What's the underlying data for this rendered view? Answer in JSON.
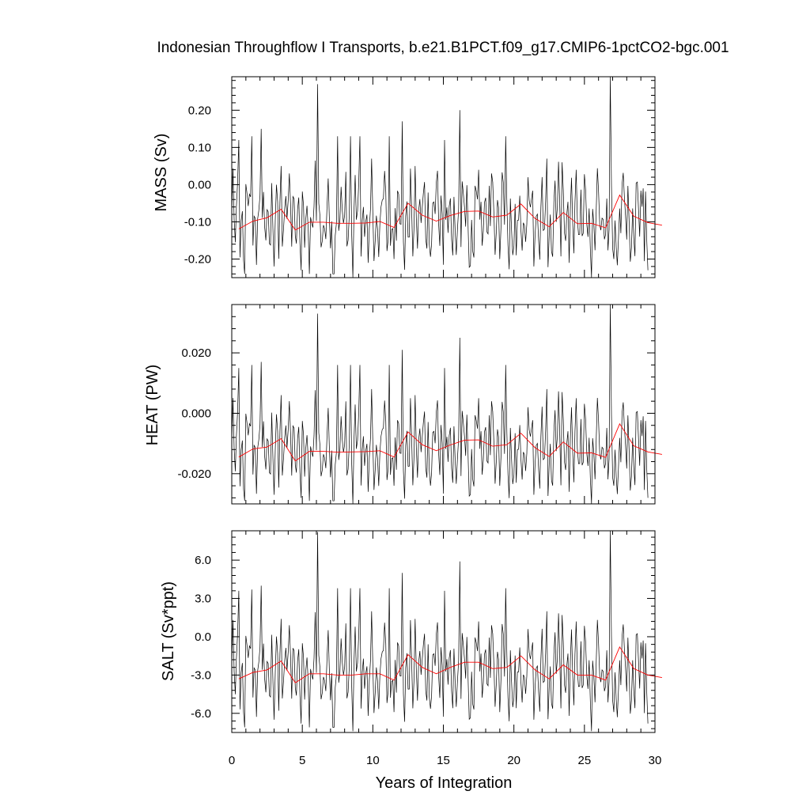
{
  "chart_data": {
    "type": "line",
    "title": "Indonesian Throughflow I Transports, b.e21.B1PCT.f09_g17.CMIP6-1pctCO2-bgc.001",
    "xlabel": "Years of Integration",
    "xlim": [
      0,
      30
    ],
    "x_ticks": [
      "0",
      "5",
      "10",
      "15",
      "20",
      "25",
      "30"
    ],
    "colors": {
      "monthly": "#000000",
      "annual_mean": "#ff0000"
    },
    "panels": [
      {
        "ylabel": "MASS (Sv)",
        "ylim": [
          -0.25,
          0.29
        ],
        "y_ticks": [
          0.2,
          0.1,
          0.0,
          -0.1,
          -0.2
        ],
        "y_tick_labels": [
          "0.20",
          "0.10",
          "0.00",
          "-0.10",
          "-0.20"
        ],
        "annual_mean": [
          -0.119,
          -0.098,
          -0.089,
          -0.066,
          -0.122,
          -0.101,
          -0.101,
          -0.104,
          -0.104,
          -0.103,
          -0.099,
          -0.115,
          -0.05,
          -0.082,
          -0.098,
          -0.083,
          -0.072,
          -0.071,
          -0.087,
          -0.082,
          -0.052,
          -0.091,
          -0.113,
          -0.075,
          -0.105,
          -0.104,
          -0.116,
          -0.028,
          -0.085,
          -0.102,
          -0.109
        ],
        "monthly_peaks": [
          [
            0.5,
            0.12
          ],
          [
            1.4,
            0.13
          ],
          [
            2.1,
            0.15
          ],
          [
            3.5,
            0.05
          ],
          [
            4.1,
            0.03
          ],
          [
            6.1,
            0.27
          ],
          [
            7.5,
            0.13
          ],
          [
            8.4,
            0.13
          ],
          [
            9.1,
            0.13
          ],
          [
            9.9,
            0.07
          ],
          [
            11.2,
            0.13
          ],
          [
            12.1,
            0.17
          ],
          [
            13.0,
            0.05
          ],
          [
            15.1,
            0.12
          ],
          [
            16.2,
            0.2
          ],
          [
            17.5,
            0.04
          ],
          [
            18.4,
            0.03
          ],
          [
            19.4,
            0.13
          ],
          [
            21.0,
            0.02
          ],
          [
            22.3,
            0.07
          ],
          [
            23.4,
            0.06
          ],
          [
            24.4,
            0.04
          ],
          [
            26.8,
            0.29
          ],
          [
            27.7,
            0.0
          ],
          [
            29.2,
            -0.01
          ]
        ],
        "monthly_troughs": [
          [
            0.9,
            -0.24
          ],
          [
            3.0,
            -0.22
          ],
          [
            4.9,
            -0.23
          ],
          [
            5.5,
            -0.24
          ],
          [
            7.2,
            -0.24
          ],
          [
            8.6,
            -0.25
          ],
          [
            9.7,
            -0.21
          ],
          [
            11.5,
            -0.2
          ],
          [
            14.0,
            -0.16
          ],
          [
            15.7,
            -0.19
          ],
          [
            17.1,
            -0.18
          ],
          [
            19.0,
            -0.2
          ],
          [
            20.2,
            -0.19
          ],
          [
            21.4,
            -0.22
          ],
          [
            23.9,
            -0.21
          ],
          [
            25.5,
            -0.25
          ],
          [
            27.1,
            -0.2
          ],
          [
            28.3,
            -0.17
          ],
          [
            29.5,
            -0.23
          ]
        ]
      },
      {
        "ylabel": "HEAT (PW)",
        "ylim": [
          -0.03,
          0.036
        ],
        "y_ticks": [
          0.02,
          0.0,
          -0.02
        ],
        "y_tick_labels": [
          "0.020",
          "0.000",
          "-0.020"
        ],
        "annual_mean": [
          -0.0145,
          -0.0118,
          -0.0112,
          -0.0084,
          -0.0158,
          -0.0126,
          -0.0126,
          -0.0129,
          -0.0128,
          -0.0127,
          -0.0124,
          -0.0145,
          -0.0062,
          -0.0104,
          -0.0124,
          -0.0105,
          -0.0089,
          -0.0088,
          -0.0109,
          -0.0104,
          -0.0066,
          -0.0114,
          -0.0143,
          -0.0095,
          -0.0132,
          -0.0131,
          -0.0146,
          -0.0035,
          -0.0108,
          -0.0128,
          -0.0136
        ],
        "monthly_peaks": [
          [
            0.5,
            0.015
          ],
          [
            1.4,
            0.016
          ],
          [
            2.1,
            0.017
          ],
          [
            3.5,
            0.006
          ],
          [
            4.1,
            0.004
          ],
          [
            6.1,
            0.033
          ],
          [
            7.5,
            0.016
          ],
          [
            8.4,
            0.016
          ],
          [
            9.1,
            0.016
          ],
          [
            9.9,
            0.008
          ],
          [
            11.2,
            0.016
          ],
          [
            12.1,
            0.021
          ],
          [
            13.0,
            0.006
          ],
          [
            15.1,
            0.015
          ],
          [
            16.2,
            0.025
          ],
          [
            17.5,
            0.005
          ],
          [
            18.4,
            0.004
          ],
          [
            19.4,
            0.016
          ],
          [
            21.0,
            0.002
          ],
          [
            22.3,
            0.008
          ],
          [
            23.4,
            0.007
          ],
          [
            24.4,
            0.005
          ],
          [
            26.8,
            0.036
          ],
          [
            27.7,
            0.0
          ],
          [
            29.2,
            -0.001
          ]
        ],
        "monthly_troughs": [
          [
            0.9,
            -0.029
          ],
          [
            3.0,
            -0.027
          ],
          [
            4.9,
            -0.028
          ],
          [
            5.5,
            -0.029
          ],
          [
            7.2,
            -0.029
          ],
          [
            8.6,
            -0.03
          ],
          [
            9.7,
            -0.026
          ],
          [
            11.5,
            -0.024
          ],
          [
            14.0,
            -0.019
          ],
          [
            15.7,
            -0.023
          ],
          [
            17.1,
            -0.022
          ],
          [
            19.0,
            -0.024
          ],
          [
            20.2,
            -0.023
          ],
          [
            21.4,
            -0.027
          ],
          [
            23.9,
            -0.026
          ],
          [
            25.5,
            -0.03
          ],
          [
            27.1,
            -0.024
          ],
          [
            28.3,
            -0.021
          ],
          [
            29.5,
            -0.028
          ]
        ]
      },
      {
        "ylabel": "SALT (Sv*ppt)",
        "ylim": [
          -7.5,
          8.3
        ],
        "y_ticks": [
          6.0,
          3.0,
          0.0,
          -3.0,
          -6.0
        ],
        "y_tick_labels": [
          "6.0",
          "3.0",
          "0.0",
          "-3.0",
          "-6.0"
        ],
        "annual_mean": [
          -3.3,
          -2.8,
          -2.6,
          -1.9,
          -3.6,
          -2.9,
          -2.9,
          -3.0,
          -3.0,
          -2.9,
          -2.9,
          -3.4,
          -1.4,
          -2.4,
          -2.9,
          -2.4,
          -2.0,
          -2.0,
          -2.5,
          -2.4,
          -1.5,
          -2.6,
          -3.3,
          -2.2,
          -3.0,
          -3.0,
          -3.4,
          -0.8,
          -2.5,
          -3.0,
          -3.2
        ],
        "monthly_peaks": [
          [
            0.5,
            3.6
          ],
          [
            1.4,
            3.7
          ],
          [
            2.1,
            4.0
          ],
          [
            3.5,
            1.4
          ],
          [
            4.1,
            0.9
          ],
          [
            6.1,
            8.2
          ],
          [
            7.5,
            3.8
          ],
          [
            8.4,
            3.8
          ],
          [
            9.1,
            3.8
          ],
          [
            9.9,
            2.0
          ],
          [
            11.2,
            3.8
          ],
          [
            12.1,
            5.0
          ],
          [
            13.0,
            1.4
          ],
          [
            15.1,
            3.6
          ],
          [
            16.2,
            5.9
          ],
          [
            17.5,
            1.2
          ],
          [
            18.4,
            0.9
          ],
          [
            19.4,
            3.8
          ],
          [
            21.0,
            0.6
          ],
          [
            22.3,
            2.0
          ],
          [
            23.4,
            1.7
          ],
          [
            24.4,
            1.2
          ],
          [
            26.8,
            8.3
          ],
          [
            27.7,
            0.0
          ],
          [
            29.2,
            -0.3
          ]
        ],
        "monthly_troughs": [
          [
            0.9,
            -7.1
          ],
          [
            3.0,
            -6.5
          ],
          [
            4.9,
            -6.8
          ],
          [
            5.5,
            -7.1
          ],
          [
            7.2,
            -7.1
          ],
          [
            8.6,
            -7.4
          ],
          [
            9.7,
            -6.2
          ],
          [
            11.5,
            -5.9
          ],
          [
            14.0,
            -4.7
          ],
          [
            15.7,
            -5.6
          ],
          [
            17.1,
            -5.3
          ],
          [
            19.0,
            -5.9
          ],
          [
            20.2,
            -5.6
          ],
          [
            21.4,
            -6.5
          ],
          [
            23.9,
            -6.2
          ],
          [
            25.5,
            -7.4
          ],
          [
            27.1,
            -5.9
          ],
          [
            28.3,
            -5.0
          ],
          [
            29.5,
            -6.8
          ]
        ]
      }
    ]
  }
}
